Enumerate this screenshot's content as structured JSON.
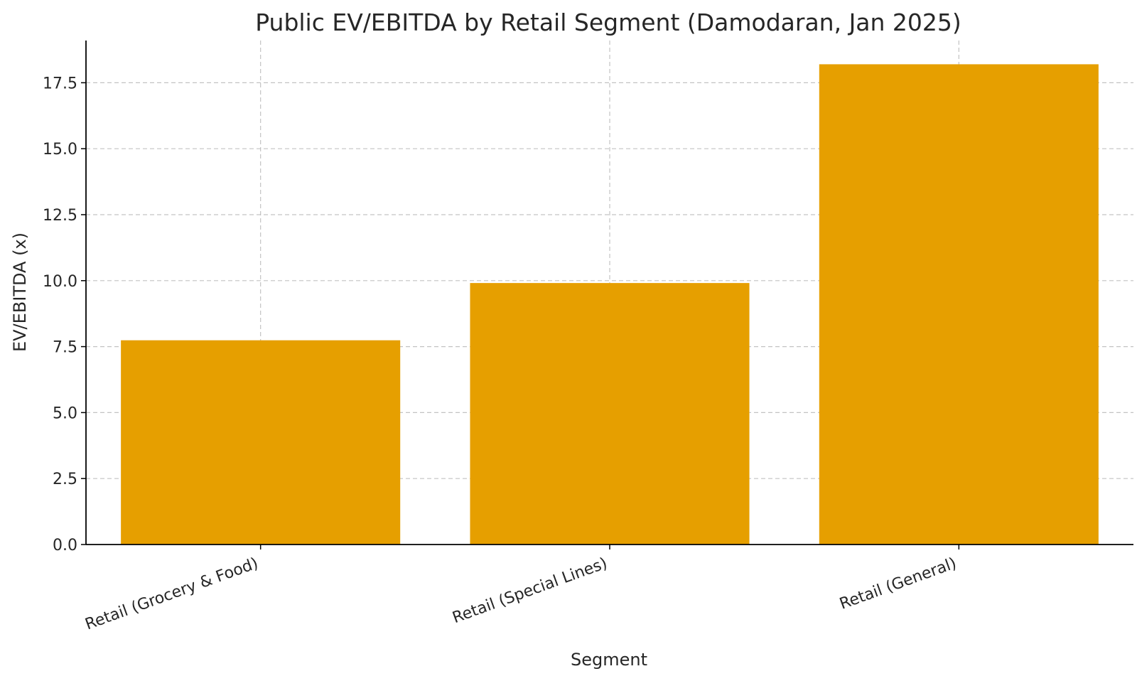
{
  "chart_data": {
    "type": "bar",
    "title": "Public EV/EBITDA by Retail Segment (Damodaran, Jan 2025)",
    "xlabel": "Segment",
    "ylabel": "EV/EBITDA (x)",
    "categories": [
      "Retail (Grocery & Food)",
      "Retail (Special Lines)",
      "Retail (General)"
    ],
    "values": [
      7.74,
      9.91,
      18.2
    ],
    "ylim": [
      0,
      19.1
    ],
    "yticks": [
      0.0,
      2.5,
      5.0,
      7.5,
      10.0,
      12.5,
      15.0,
      17.5
    ],
    "ytick_labels": [
      "0.0",
      "2.5",
      "5.0",
      "7.5",
      "10.0",
      "12.5",
      "15.0",
      "17.5"
    ],
    "grid": true,
    "bar_color": "#E69F00",
    "axis_color": "#000000",
    "grid_color": "#b0b0b0"
  }
}
